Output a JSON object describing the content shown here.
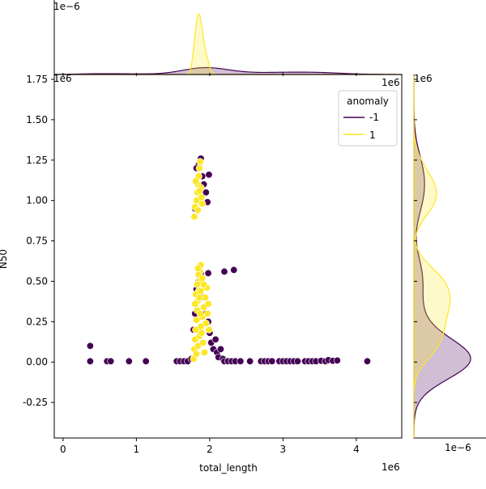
{
  "chart_data": {
    "type": "scatter",
    "title": "",
    "xlabel": "total_length",
    "ylabel": "N50",
    "x_offset_text": "1e6",
    "y_offset_text": "1e6",
    "x_ticks": [
      0,
      1,
      2,
      3,
      4
    ],
    "y_ticks": [
      -0.25,
      0.0,
      0.25,
      0.5,
      0.75,
      1.0,
      1.25,
      1.5,
      1.75
    ],
    "xlim": [
      -0.12,
      4.62
    ],
    "ylim": [
      -0.47,
      1.78
    ],
    "grid": false,
    "legend": {
      "title": "anomaly",
      "placement": "top-right",
      "entries": [
        {
          "label": "-1",
          "color": "#440154"
        },
        {
          "label": "1",
          "color": "#fde725"
        }
      ]
    },
    "series": [
      {
        "name": "-1",
        "color": "#440154",
        "points": [
          [
            0.37,
            0.1
          ],
          [
            0.37,
            0.005
          ],
          [
            0.6,
            0.005
          ],
          [
            0.65,
            0.005
          ],
          [
            0.9,
            0.005
          ],
          [
            1.13,
            0.005
          ],
          [
            1.55,
            0.005
          ],
          [
            1.6,
            0.005
          ],
          [
            1.65,
            0.005
          ],
          [
            1.7,
            0.005
          ],
          [
            1.75,
            0.02
          ],
          [
            1.78,
            0.2
          ],
          [
            1.8,
            0.3
          ],
          [
            1.82,
            0.45
          ],
          [
            1.85,
            0.5
          ],
          [
            1.88,
            0.55
          ],
          [
            1.92,
            0.4
          ],
          [
            1.95,
            0.3
          ],
          [
            1.98,
            0.25
          ],
          [
            2.0,
            0.18
          ],
          [
            2.02,
            0.12
          ],
          [
            2.05,
            0.08
          ],
          [
            2.08,
            0.14
          ],
          [
            2.1,
            0.06
          ],
          [
            2.12,
            0.03
          ],
          [
            2.15,
            0.08
          ],
          [
            2.18,
            0.02
          ],
          [
            2.2,
            0.005
          ],
          [
            2.25,
            0.005
          ],
          [
            2.3,
            0.005
          ],
          [
            2.35,
            0.005
          ],
          [
            1.98,
            0.55
          ],
          [
            2.2,
            0.56
          ],
          [
            2.33,
            0.57
          ],
          [
            1.8,
            0.95
          ],
          [
            1.83,
            1.05
          ],
          [
            1.85,
            1.22
          ],
          [
            1.88,
            1.26
          ],
          [
            1.9,
            1.15
          ],
          [
            1.92,
            1.1
          ],
          [
            1.95,
            1.05
          ],
          [
            1.97,
            0.99
          ],
          [
            1.99,
            1.16
          ],
          [
            1.82,
            1.2
          ],
          [
            1.86,
            1.0
          ],
          [
            2.42,
            0.005
          ],
          [
            2.55,
            0.005
          ],
          [
            2.7,
            0.005
          ],
          [
            2.75,
            0.005
          ],
          [
            2.8,
            0.005
          ],
          [
            2.85,
            0.005
          ],
          [
            2.95,
            0.005
          ],
          [
            3.0,
            0.005
          ],
          [
            3.05,
            0.005
          ],
          [
            3.1,
            0.005
          ],
          [
            3.15,
            0.005
          ],
          [
            3.2,
            0.005
          ],
          [
            3.3,
            0.005
          ],
          [
            3.35,
            0.005
          ],
          [
            3.4,
            0.005
          ],
          [
            3.45,
            0.005
          ],
          [
            3.52,
            0.008
          ],
          [
            3.58,
            0.005
          ],
          [
            3.62,
            0.012
          ],
          [
            3.68,
            0.008
          ],
          [
            3.74,
            0.01
          ],
          [
            4.15,
            0.005
          ]
        ]
      },
      {
        "name": "1",
        "color": "#fde725",
        "points": [
          [
            1.78,
            0.02
          ],
          [
            1.79,
            0.08
          ],
          [
            1.8,
            0.14
          ],
          [
            1.81,
            0.2
          ],
          [
            1.82,
            0.26
          ],
          [
            1.83,
            0.32
          ],
          [
            1.84,
            0.38
          ],
          [
            1.85,
            0.44
          ],
          [
            1.86,
            0.5
          ],
          [
            1.87,
            0.56
          ],
          [
            1.88,
            0.6
          ],
          [
            1.82,
            0.05
          ],
          [
            1.84,
            0.1
          ],
          [
            1.86,
            0.16
          ],
          [
            1.88,
            0.22
          ],
          [
            1.9,
            0.28
          ],
          [
            1.92,
            0.34
          ],
          [
            1.94,
            0.4
          ],
          [
            1.96,
            0.46
          ],
          [
            1.98,
            0.36
          ],
          [
            1.81,
            0.42
          ],
          [
            1.83,
            0.48
          ],
          [
            1.85,
            0.54
          ],
          [
            1.87,
            0.3
          ],
          [
            1.89,
            0.18
          ],
          [
            1.91,
            0.12
          ],
          [
            1.93,
            0.06
          ],
          [
            1.95,
            0.24
          ],
          [
            1.97,
            0.3
          ],
          [
            1.99,
            0.2
          ],
          [
            1.8,
            0.36
          ],
          [
            1.84,
            0.58
          ],
          [
            1.86,
            0.4
          ],
          [
            1.88,
            0.44
          ],
          [
            1.9,
            0.52
          ],
          [
            1.92,
            0.48
          ],
          [
            1.79,
            0.9
          ],
          [
            1.8,
            0.96
          ],
          [
            1.82,
            1.0
          ],
          [
            1.83,
            1.05
          ],
          [
            1.84,
            1.1
          ],
          [
            1.85,
            1.15
          ],
          [
            1.86,
            1.2
          ],
          [
            1.87,
            1.24
          ],
          [
            1.88,
            1.08
          ],
          [
            1.89,
            1.02
          ],
          [
            1.9,
            0.98
          ],
          [
            1.81,
            1.12
          ],
          [
            1.84,
            0.94
          ],
          [
            1.86,
            1.06
          ]
        ]
      }
    ]
  }
}
